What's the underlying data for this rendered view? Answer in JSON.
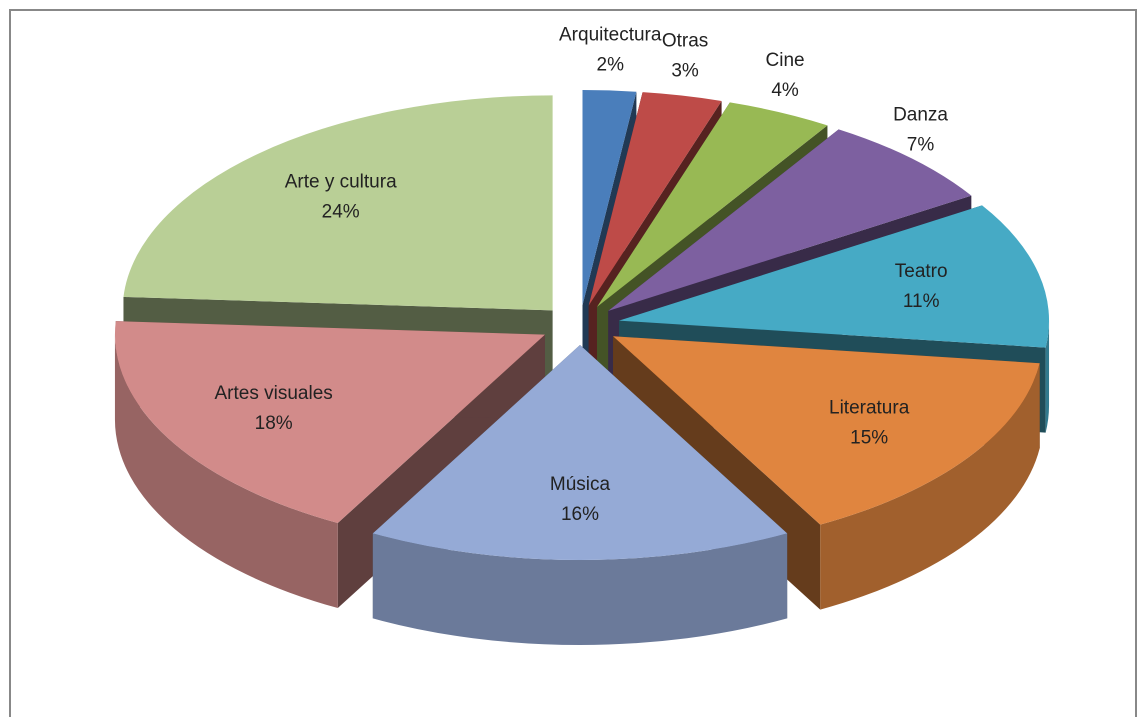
{
  "chart_data": {
    "type": "pie",
    "categories": [
      "Arquitectura",
      "Otras",
      "Cine",
      "Danza",
      "Teatro",
      "Literatura",
      "Música",
      "Artes visuales",
      "Arte y cultura"
    ],
    "values": [
      2,
      3,
      4,
      7,
      11,
      15,
      16,
      18,
      24
    ],
    "value_labels": [
      "2%",
      "3%",
      "4%",
      "7%",
      "11%",
      "15%",
      "16%",
      "18%",
      "24%"
    ],
    "colors": [
      "#4a7ebb",
      "#be4b48",
      "#98b954",
      "#7d60a0",
      "#46aac5",
      "#e0853f",
      "#95aad6",
      "#d28b8a",
      "#b9cf96"
    ],
    "explode": true
  }
}
